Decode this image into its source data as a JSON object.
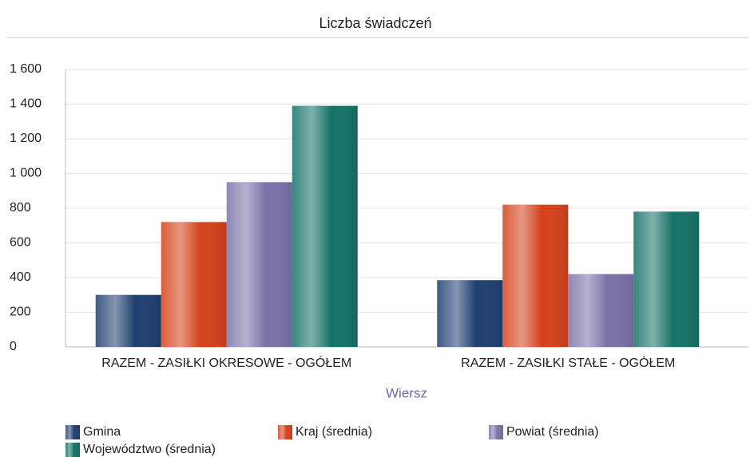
{
  "chart_data": {
    "type": "bar",
    "title": "Liczba świadczeń",
    "x_label": "Wiersz",
    "categories": [
      "RAZEM -  ZASIŁKI OKRESOWE - OGÓŁEM",
      "RAZEM -  ZASIŁKI STAŁE - OGÓŁEM"
    ],
    "series": [
      {
        "name": "Gmina",
        "color": "#1f3f70",
        "values": [
          300,
          385
        ]
      },
      {
        "name": "Kraj (średnia)",
        "color": "#d4421a",
        "values": [
          720,
          820
        ]
      },
      {
        "name": "Powiat (średnia)",
        "color": "#7a72a8",
        "values": [
          950,
          420
        ]
      },
      {
        "name": "Województwo (średnia)",
        "color": "#157268",
        "values": [
          1390,
          780
        ]
      }
    ],
    "ylim": [
      0,
      1600
    ],
    "yticks": [
      0,
      200,
      400,
      600,
      800,
      {
        "value": 1000,
        "label": "1 000"
      },
      {
        "value": 1200,
        "label": "1 200"
      },
      {
        "value": 1400,
        "label": "1 400"
      },
      {
        "value": 1600,
        "label": "1 600"
      }
    ],
    "grid": true,
    "legend": "bottom"
  }
}
